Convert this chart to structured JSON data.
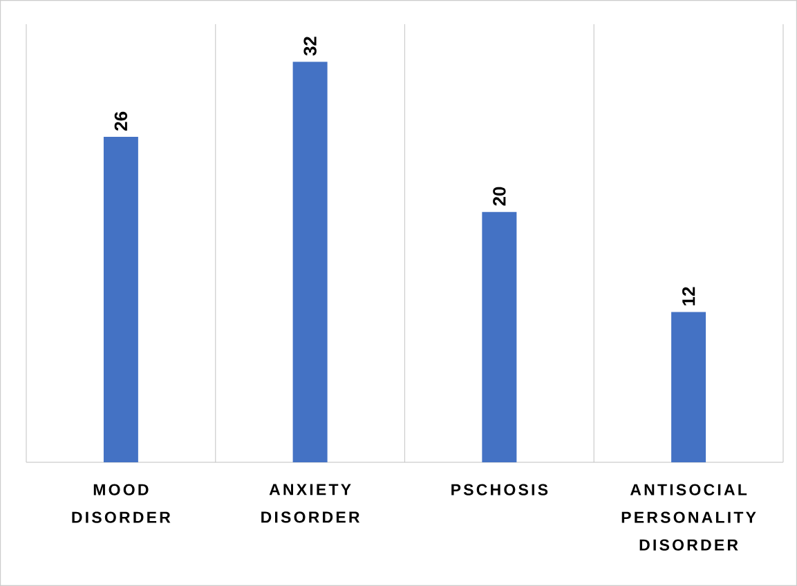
{
  "chart_data": {
    "type": "bar",
    "categories": [
      "MOOD DISORDER",
      "ANXIETY DISORDER",
      "PSCHOSIS",
      "ANTISOCIAL PERSONALITY DISORDER"
    ],
    "values": [
      26,
      32,
      20,
      12
    ],
    "color": "#4472c4",
    "ylim": [
      0,
      35
    ],
    "data_labels": true,
    "grid": "x"
  }
}
